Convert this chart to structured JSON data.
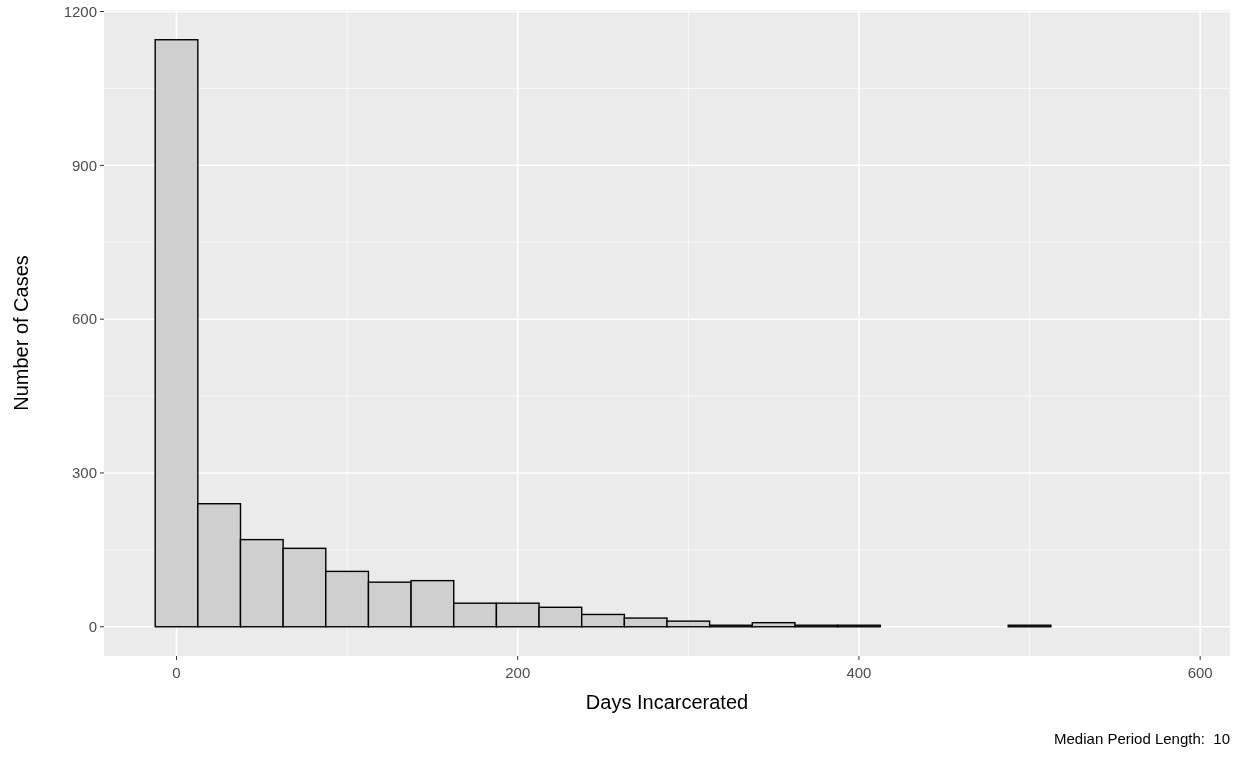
{
  "chart_data": {
    "type": "histogram",
    "xlabel": "Days Incarcerated",
    "ylabel": "Number of Cases",
    "bins": [
      -12.5,
      12.5,
      37.5,
      62.5,
      87.5,
      112.5,
      137.5,
      162.5,
      187.5,
      212.5,
      237.5,
      262.5,
      287.5,
      312.5,
      337.5,
      362.5,
      387.5,
      412.5,
      437.5,
      462.5,
      487.5,
      512.5,
      537.5,
      562.5,
      587.5
    ],
    "values": [
      1145,
      240,
      170,
      153,
      108,
      87,
      90,
      46,
      46,
      38,
      24,
      17,
      11,
      3,
      8,
      3,
      3,
      0,
      0,
      0,
      3,
      0,
      0,
      0
    ],
    "color": "#cfcfcf",
    "xlim": [
      -42.5,
      617.5
    ],
    "xticks": [
      0,
      200,
      400,
      600
    ],
    "ylim": [
      -57,
      1203
    ],
    "yticks": [
      0,
      300,
      600,
      900,
      1200
    ],
    "grid": true,
    "annotations": [
      "Median Period Length:  10"
    ]
  }
}
